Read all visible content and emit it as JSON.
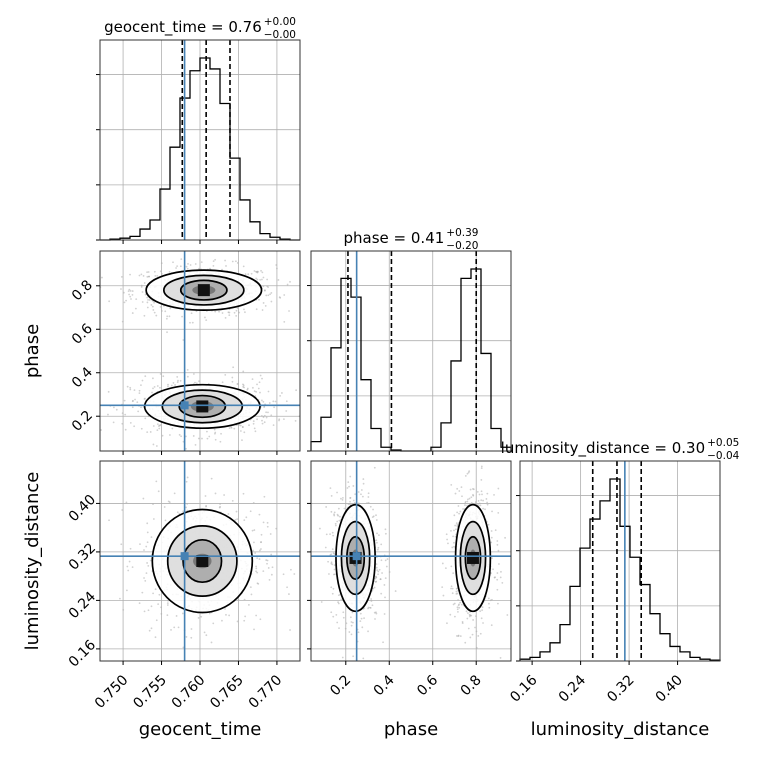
{
  "chart_data": {
    "type": "corner",
    "parameters": [
      "geocent_time",
      "phase",
      "luminosity_distance"
    ],
    "axis_labels": {
      "geocent_time": "geocent_time",
      "phase": "phase",
      "luminosity_distance": "luminosity_distance"
    },
    "ranges": {
      "geocent_time": [
        0.747,
        0.773
      ],
      "phase": [
        0.04,
        0.96
      ],
      "luminosity_distance": [
        0.14,
        0.47
      ]
    },
    "ticks": {
      "geocent_time": {
        "values": [
          0.75,
          0.755,
          0.76,
          0.765,
          0.77
        ],
        "labels": [
          "0.750",
          "0.755",
          "0.760",
          "0.765",
          "0.770"
        ]
      },
      "phase": {
        "values": [
          0.2,
          0.4,
          0.6,
          0.8
        ],
        "labels": [
          "0.2",
          "0.4",
          "0.6",
          "0.8"
        ]
      },
      "luminosity_distance": {
        "values": [
          0.16,
          0.24,
          0.32,
          0.4
        ],
        "labels": [
          "0.16",
          "0.24",
          "0.32",
          "0.40"
        ]
      }
    },
    "injection_values": {
      "geocent_time": 0.758,
      "phase": 0.25,
      "luminosity_distance": 0.313
    },
    "quantiles": {
      "geocent_time": [
        0.7577,
        0.7608,
        0.7639
      ],
      "phase": [
        0.21,
        0.41,
        0.8
      ],
      "luminosity_distance": [
        0.26,
        0.3,
        0.34
      ]
    },
    "titles": {
      "geocent_time": {
        "main": "geocent_time = 0.76",
        "sup": "+0.00",
        "sub": "−0.00"
      },
      "phase": {
        "main": "phase = 0.41",
        "sup": "+0.39",
        "sub": "−0.20"
      },
      "luminosity_distance": {
        "main": "luminosity_distance = 0.30",
        "sup": "+0.05",
        "sub": "−0.04"
      }
    },
    "histograms": {
      "geocent_time": {
        "edges": [
          0.747,
          0.7483,
          0.7496,
          0.7509,
          0.7522,
          0.7535,
          0.7548,
          0.7561,
          0.7574,
          0.7587,
          0.76,
          0.7613,
          0.7626,
          0.7639,
          0.7652,
          0.7665,
          0.7678,
          0.7691,
          0.7704,
          0.7717,
          0.773
        ],
        "counts": [
          0,
          0.005,
          0.01,
          0.02,
          0.06,
          0.11,
          0.28,
          0.51,
          0.78,
          0.93,
          1.0,
          0.94,
          0.75,
          0.45,
          0.22,
          0.1,
          0.035,
          0.015,
          0.005,
          0
        ]
      },
      "phase": {
        "edges": [
          0.04,
          0.086,
          0.132,
          0.178,
          0.224,
          0.27,
          0.316,
          0.362,
          0.408,
          0.454,
          0.5,
          0.546,
          0.592,
          0.638,
          0.684,
          0.73,
          0.776,
          0.822,
          0.868,
          0.914,
          0.96
        ],
        "counts": [
          0.05,
          0.18,
          0.55,
          0.92,
          0.82,
          0.38,
          0.12,
          0.02,
          0.005,
          0,
          0,
          0,
          0.02,
          0.15,
          0.48,
          0.92,
          0.97,
          0.52,
          0.12,
          0.02
        ]
      },
      "luminosity_distance": {
        "edges": [
          0.14,
          0.1565,
          0.173,
          0.1895,
          0.206,
          0.2225,
          0.239,
          0.2555,
          0.272,
          0.2885,
          0.305,
          0.3215,
          0.338,
          0.3545,
          0.371,
          0.3875,
          0.404,
          0.4205,
          0.437,
          0.4535,
          0.47
        ],
        "counts": [
          0.01,
          0.02,
          0.05,
          0.1,
          0.2,
          0.41,
          0.62,
          0.78,
          0.88,
          1.0,
          0.74,
          0.57,
          0.42,
          0.26,
          0.15,
          0.08,
          0.05,
          0.02,
          0.01,
          0.005
        ]
      }
    },
    "contours": {
      "phase_vs_geocent_time": [
        {
          "center": [
            0.7605,
            0.78
          ],
          "levels": [
            [
              0.0015,
              0.022
            ],
            [
              0.003,
              0.045
            ],
            [
              0.0052,
              0.068
            ],
            [
              0.0075,
              0.092
            ]
          ]
        },
        {
          "center": [
            0.7603,
            0.245
          ],
          "levels": [
            [
              0.0015,
              0.025
            ],
            [
              0.003,
              0.05
            ],
            [
              0.0052,
              0.075
            ],
            [
              0.0075,
              0.1
            ]
          ]
        }
      ],
      "luminosity_distance_vs_geocent_time": [
        {
          "center": [
            0.7603,
            0.305
          ],
          "levels": [
            [
              0.0012,
              0.012
            ],
            [
              0.0025,
              0.035
            ],
            [
              0.0045,
              0.058
            ],
            [
              0.0065,
              0.085
            ]
          ]
        }
      ],
      "luminosity_distance_vs_phase": [
        {
          "center": [
            0.245,
            0.31
          ],
          "levels": [
            [
              0.018,
              0.014
            ],
            [
              0.04,
              0.035
            ],
            [
              0.065,
              0.06
            ],
            [
              0.09,
              0.088
            ]
          ]
        },
        {
          "center": [
            0.785,
            0.31
          ],
          "levels": [
            [
              0.015,
              0.014
            ],
            [
              0.035,
              0.035
            ],
            [
              0.058,
              0.06
            ],
            [
              0.08,
              0.088
            ]
          ]
        }
      ]
    },
    "grid": true,
    "colors": {
      "hist": "#000000",
      "truth": "#4682b4",
      "scatter": "#9a9a9a",
      "grid": "#b0b0b0"
    }
  }
}
